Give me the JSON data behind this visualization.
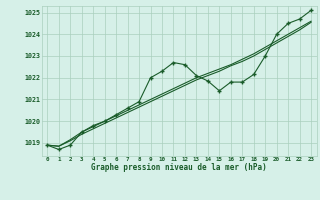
{
  "background_color": "#d6f0e8",
  "grid_color": "#aacfbe",
  "line_color": "#1a5c2a",
  "text_color": "#1a5c2a",
  "title": "Graphe pression niveau de la mer (hPa)",
  "xlabel_hours": [
    0,
    1,
    2,
    3,
    4,
    5,
    6,
    7,
    8,
    9,
    10,
    11,
    12,
    13,
    14,
    15,
    16,
    17,
    18,
    19,
    20,
    21,
    22,
    23
  ],
  "ylim": [
    1018.4,
    1025.3
  ],
  "yticks": [
    1019,
    1020,
    1021,
    1022,
    1023,
    1024,
    1025
  ],
  "series_main": [
    1018.9,
    1018.7,
    1018.9,
    1019.5,
    1019.8,
    1020.0,
    1020.3,
    1020.6,
    1020.9,
    1022.0,
    1022.3,
    1022.7,
    1022.6,
    1022.1,
    1021.85,
    1021.4,
    1021.8,
    1021.8,
    1022.15,
    1023.0,
    1024.0,
    1024.5,
    1024.7,
    1025.1
  ],
  "series_trend1": [
    1018.9,
    1018.85,
    1019.1,
    1019.4,
    1019.65,
    1019.9,
    1020.15,
    1020.4,
    1020.65,
    1020.9,
    1021.15,
    1021.4,
    1021.65,
    1021.9,
    1022.1,
    1022.3,
    1022.55,
    1022.75,
    1023.0,
    1023.3,
    1023.6,
    1023.9,
    1024.2,
    1024.55
  ],
  "series_trend2": [
    1018.9,
    1018.85,
    1019.15,
    1019.5,
    1019.75,
    1020.0,
    1020.25,
    1020.5,
    1020.75,
    1021.0,
    1021.25,
    1021.5,
    1021.75,
    1022.0,
    1022.2,
    1022.4,
    1022.6,
    1022.85,
    1023.1,
    1023.4,
    1023.7,
    1024.0,
    1024.3,
    1024.6
  ]
}
